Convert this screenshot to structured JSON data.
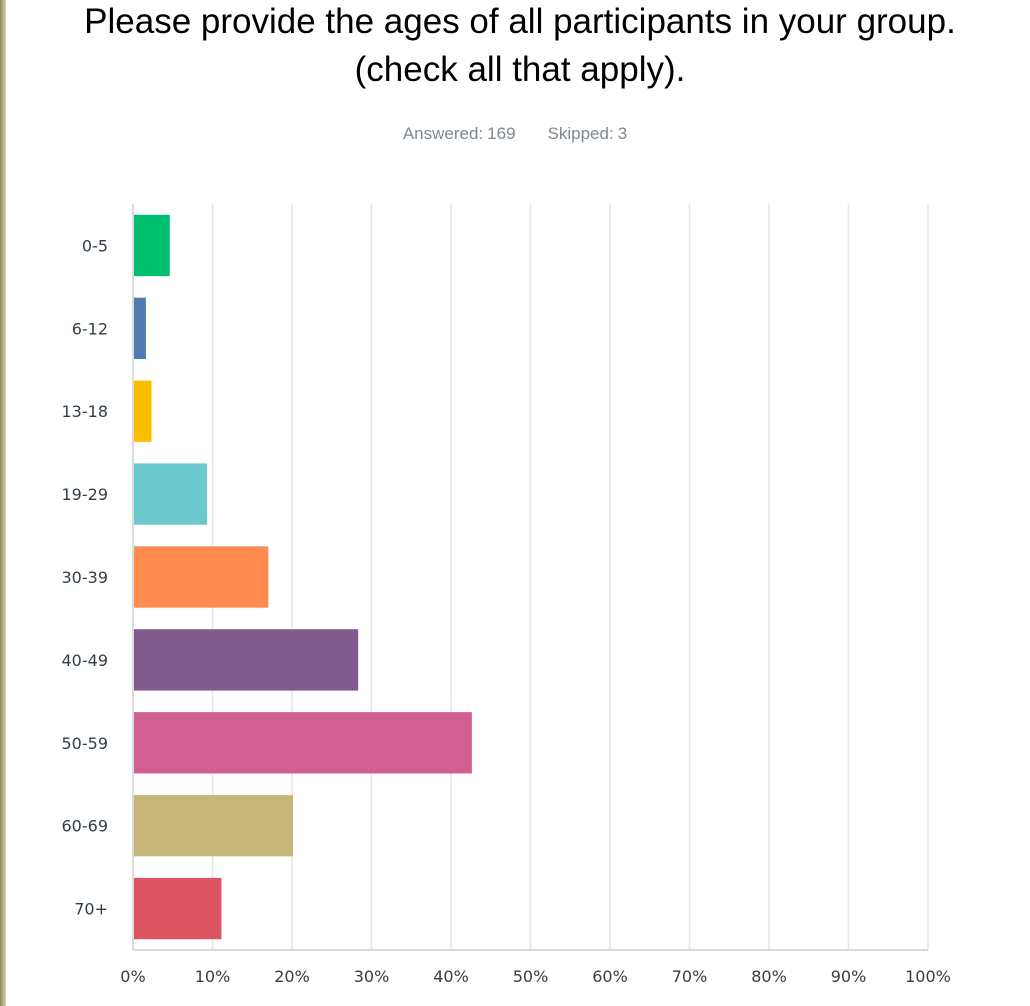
{
  "survey": {
    "title_line1": "Please provide the ages of all participants in your group.",
    "title_line2": "(check all that apply).",
    "answered_label": "Answered:",
    "answered_value": "169",
    "skipped_label": "Skipped:",
    "skipped_value": "3"
  },
  "chart_data": {
    "type": "bar",
    "orientation": "horizontal",
    "categories": [
      "0-5",
      "6-12",
      "13-18",
      "19-29",
      "30-39",
      "40-49",
      "50-59",
      "60-69",
      "70+"
    ],
    "values": [
      4.5,
      1.5,
      2.2,
      9.2,
      16.9,
      28.2,
      42.5,
      20.0,
      11.0
    ],
    "colors": [
      "#00bf6f",
      "#507cb6",
      "#f9be00",
      "#6bc8cd",
      "#ff8b4f",
      "#7f5c8d",
      "#d25f90",
      "#c7b879",
      "#dc5461"
    ],
    "xlim": [
      0,
      100
    ],
    "x_ticks": [
      "0%",
      "10%",
      "20%",
      "30%",
      "40%",
      "50%",
      "60%",
      "70%",
      "80%",
      "90%",
      "100%"
    ],
    "grid": true
  }
}
